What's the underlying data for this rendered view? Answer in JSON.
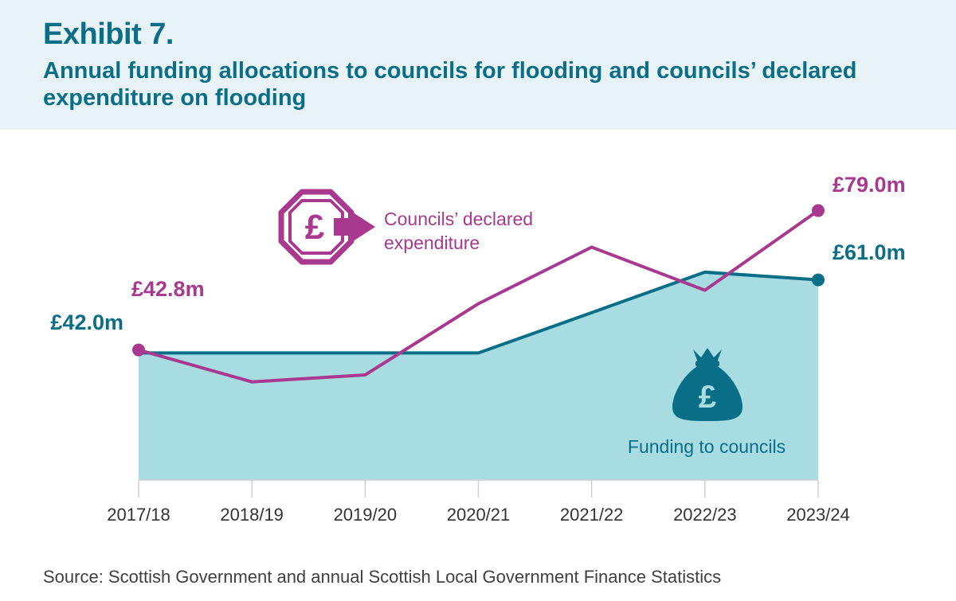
{
  "header": {
    "exhibit": "Exhibit 7.",
    "subtitle": "Annual funding allocations to councils for flooding and councils’ declared expenditure on flooding"
  },
  "source": "Source: Scottish Government and annual Scottish Local Government Finance Statistics",
  "colors": {
    "funding_line": "#0b6e87",
    "funding_fill": "#a7dce3",
    "expenditure_line": "#a8398e",
    "header_bg": "#e8f3f8"
  },
  "chart_data": {
    "type": "area",
    "categories": [
      "2017/18",
      "2018/19",
      "2019/20",
      "2020/21",
      "2021/22",
      "2022/23",
      "2023/24"
    ],
    "ylim": [
      9,
      100
    ],
    "series": [
      {
        "name": "Funding to councils",
        "type": "area",
        "values": [
          42.0,
          42.0,
          42.0,
          42.0,
          52.5,
          63.0,
          61.0
        ],
        "start_label": "£42.0m",
        "end_label": "£61.0m",
        "icon": "money-bag-icon"
      },
      {
        "name": "Councils’ declared expenditure",
        "label_lines": [
          "Councils’ declared",
          "expenditure"
        ],
        "type": "line",
        "values": [
          42.8,
          34.5,
          36.3,
          54.8,
          69.5,
          58.3,
          79.0
        ],
        "start_label": "£42.8m",
        "end_label": "£79.0m",
        "icon": "pound-arrow-icon"
      }
    ]
  }
}
